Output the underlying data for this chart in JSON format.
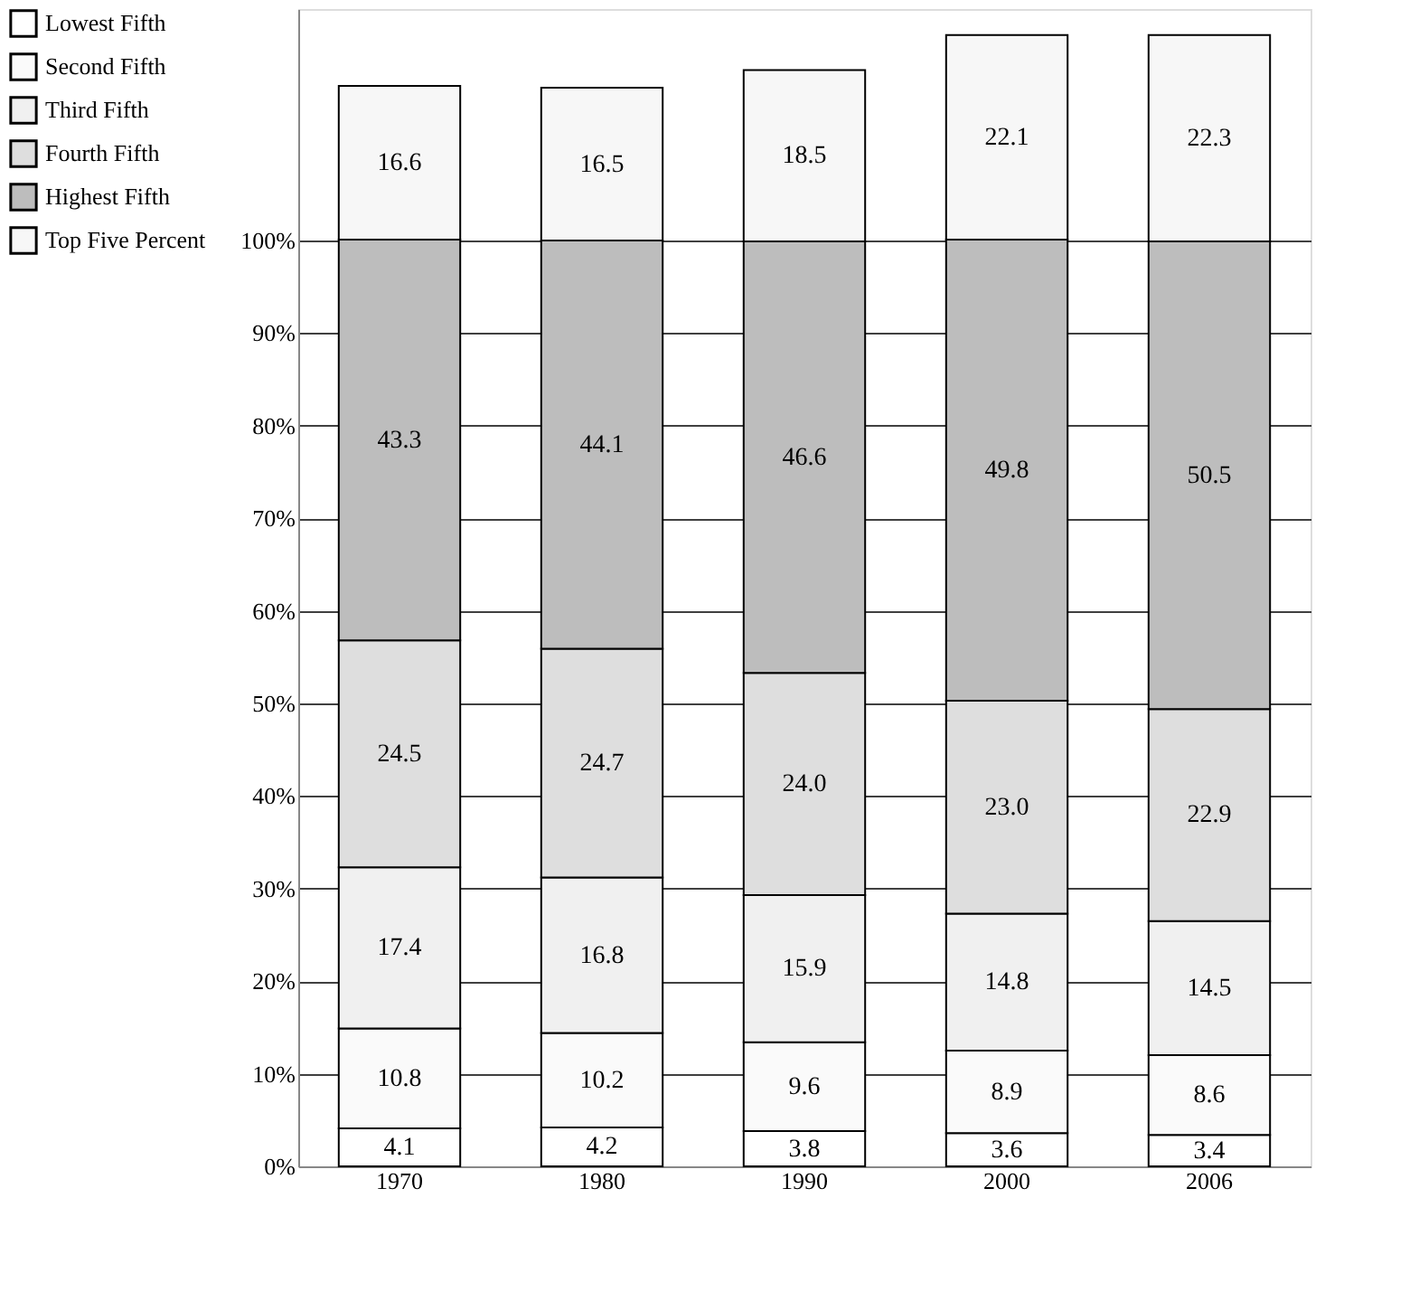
{
  "chart_data": {
    "type": "bar",
    "stacked": true,
    "categories": [
      "1970",
      "1980",
      "1990",
      "2000",
      "2006"
    ],
    "series": [
      {
        "name": "Lowest Fifth",
        "color": "#ffffff",
        "values": [
          4.1,
          4.2,
          3.8,
          3.6,
          3.4
        ],
        "value_labels": [
          "4.1",
          "4.2",
          "3.8",
          "3.6",
          "3.4"
        ]
      },
      {
        "name": "Second Fifth",
        "color": "#fafafa",
        "values": [
          10.8,
          10.2,
          9.6,
          8.9,
          8.6
        ],
        "value_labels": [
          "10.8",
          "10.2",
          "9.6",
          "8.9",
          "8.6"
        ]
      },
      {
        "name": "Third Fifth",
        "color": "#f0f0f0",
        "values": [
          17.4,
          16.8,
          15.9,
          14.8,
          14.5
        ],
        "value_labels": [
          "17.4",
          "16.8",
          "15.9",
          "14.8",
          "14.5"
        ]
      },
      {
        "name": "Fourth Fifth",
        "color": "#dedede",
        "values": [
          24.5,
          24.7,
          24.0,
          23.0,
          22.9
        ],
        "value_labels": [
          "24.5",
          "24.7",
          "24.0",
          "23.0",
          "22.9"
        ]
      },
      {
        "name": "Highest Fifth",
        "color": "#bdbdbd",
        "values": [
          43.3,
          44.1,
          46.6,
          49.8,
          50.5
        ],
        "value_labels": [
          "43.3",
          "44.1",
          "46.6",
          "49.8",
          "50.5"
        ]
      },
      {
        "name": "Top Five Percent",
        "color": "#f7f7f7",
        "values": [
          16.6,
          16.5,
          18.5,
          22.1,
          22.3
        ],
        "value_labels": [
          "16.6",
          "16.5",
          "18.5",
          "22.1",
          "22.3"
        ]
      }
    ],
    "ylim": [
      0,
      125
    ],
    "yticks": [
      {
        "value": 0,
        "label": "0%"
      },
      {
        "value": 10,
        "label": "10%"
      },
      {
        "value": 20,
        "label": "20%"
      },
      {
        "value": 30,
        "label": "30%"
      },
      {
        "value": 40,
        "label": "40%"
      },
      {
        "value": 50,
        "label": "50%"
      },
      {
        "value": 60,
        "label": "60%"
      },
      {
        "value": 70,
        "label": "70%"
      },
      {
        "value": 80,
        "label": "80%"
      },
      {
        "value": 90,
        "label": "90%"
      },
      {
        "value": 100,
        "label": "100%"
      }
    ],
    "grid": "y",
    "legend": "left"
  }
}
